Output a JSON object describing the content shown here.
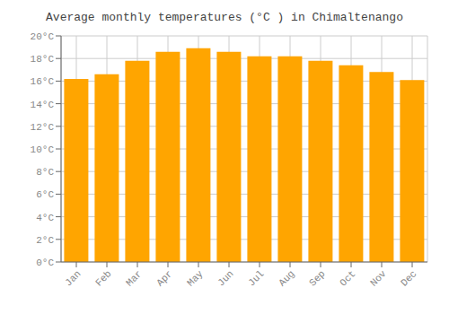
{
  "chart_data": {
    "type": "bar",
    "title": "Average monthly temperatures (°C ) in Chimaltenango",
    "categories": [
      "Jan",
      "Feb",
      "Mar",
      "Apr",
      "May",
      "Jun",
      "Jul",
      "Aug",
      "Sep",
      "Oct",
      "Nov",
      "Dec"
    ],
    "values": [
      16.2,
      16.6,
      17.8,
      18.6,
      18.9,
      18.6,
      18.2,
      18.2,
      17.8,
      17.4,
      16.8,
      16.1
    ],
    "color": "#FFA500",
    "ylim": [
      0,
      20
    ],
    "yticks": [
      {
        "value": 0,
        "label": "0°C"
      },
      {
        "value": 2,
        "label": "2°C"
      },
      {
        "value": 4,
        "label": "4°C"
      },
      {
        "value": 6,
        "label": "6°C"
      },
      {
        "value": 8,
        "label": "8°C"
      },
      {
        "value": 10,
        "label": "10°C"
      },
      {
        "value": 12,
        "label": "12°C"
      },
      {
        "value": 14,
        "label": "14°C"
      },
      {
        "value": 16,
        "label": "16°C"
      },
      {
        "value": 18,
        "label": "18°C"
      },
      {
        "value": 20,
        "label": "20°C"
      }
    ],
    "grid": true
  }
}
